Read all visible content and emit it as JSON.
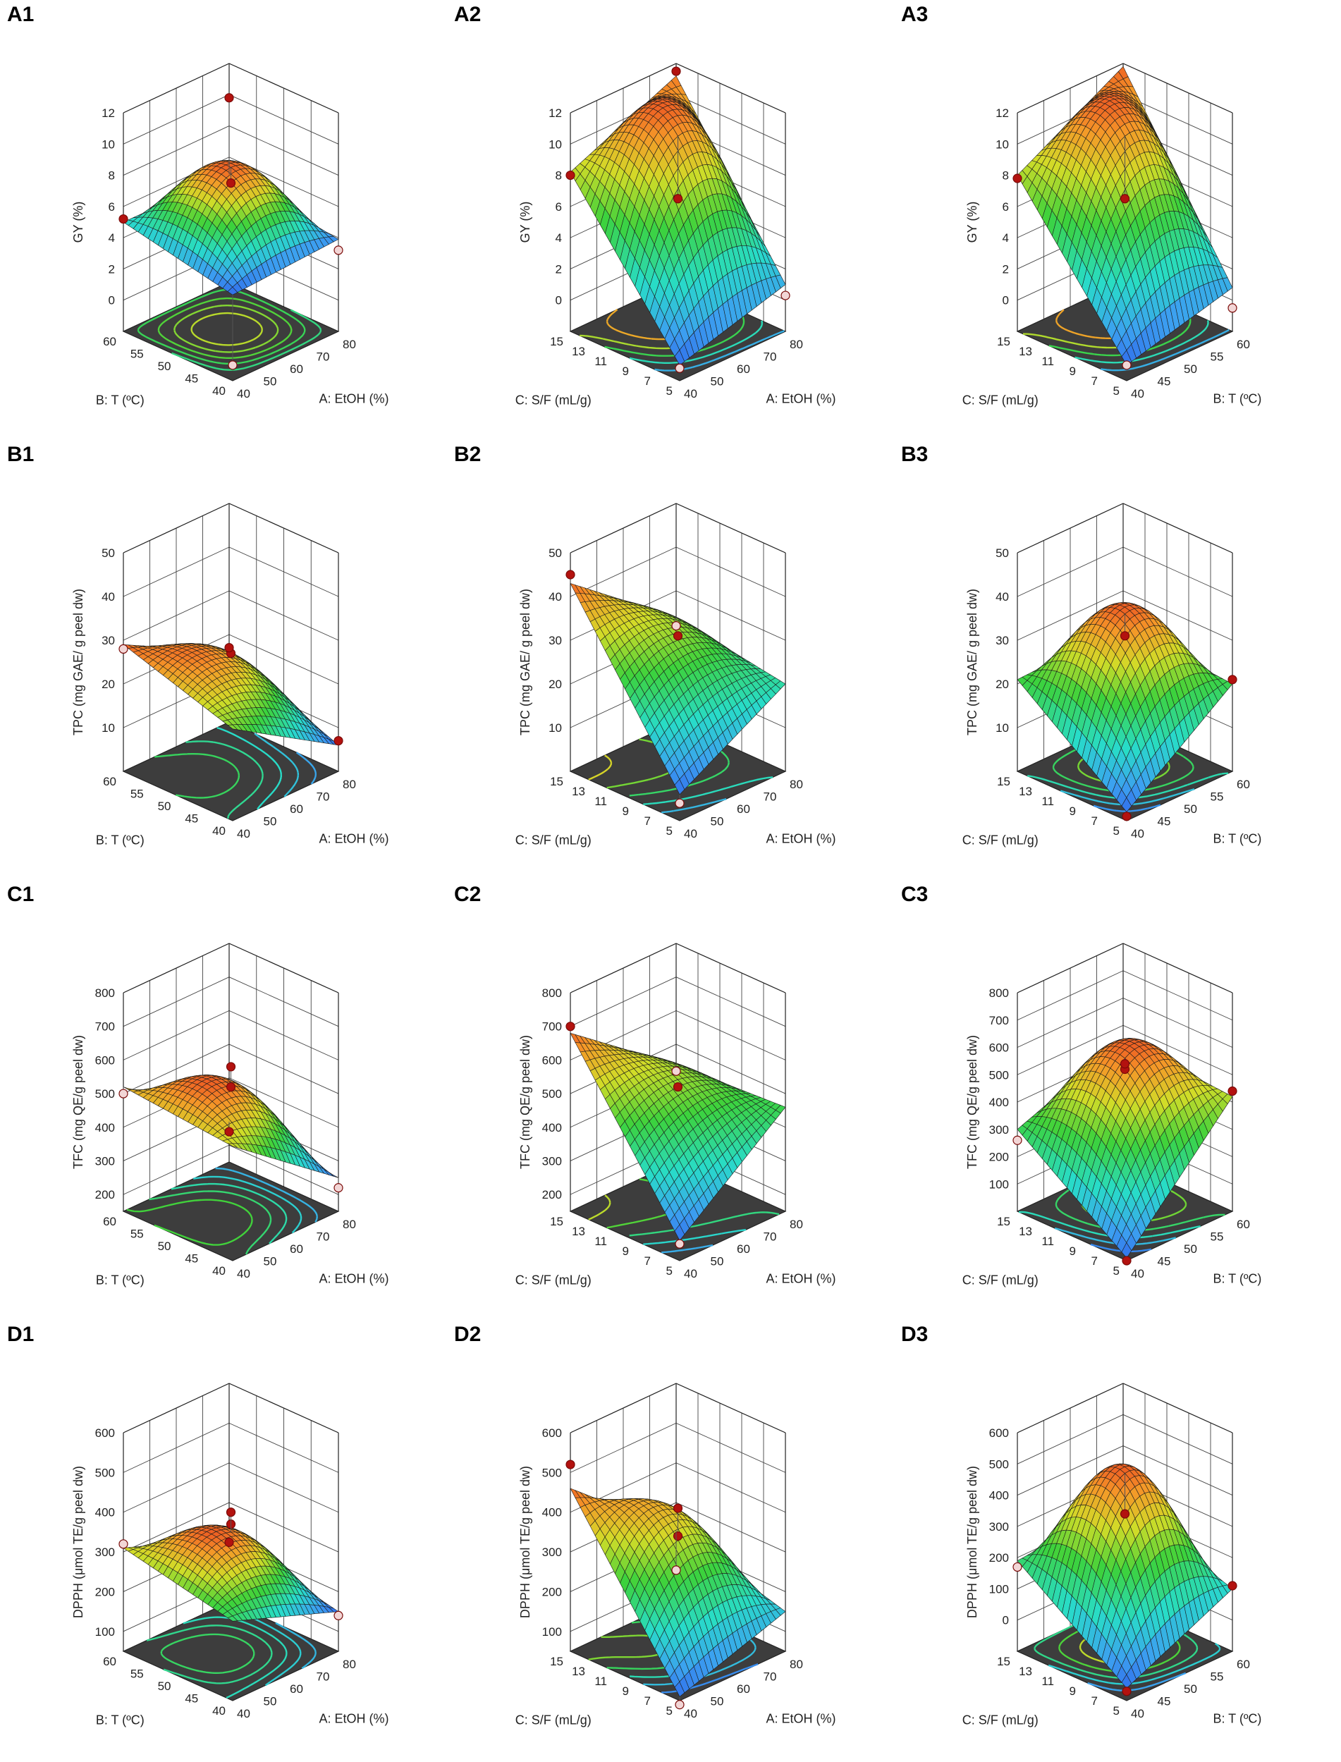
{
  "chart_data": [
    {
      "id": "A1",
      "type": "surface3d",
      "response": "gy",
      "x": "etoh",
      "y": "temp",
      "zlabel": "GY (%)",
      "zticks": [
        0,
        2,
        4,
        6,
        8,
        10,
        12
      ],
      "zlim": [
        -2,
        12
      ],
      "xlabel": "A: EtOH (%)",
      "xticks": [
        40,
        50,
        60,
        70,
        80
      ],
      "xlim": [
        40,
        80
      ],
      "ylabel": "B: T (ºC)",
      "yticks": [
        40,
        45,
        50,
        55,
        60
      ],
      "ylim": [
        40,
        60
      ],
      "surface_corners": {
        "xmin_ymin": 3.5,
        "xmax_ymin": 3.9,
        "xmin_ymax": 5.0,
        "xmax_ymax": 4.9
      },
      "surface_peak": 8.5,
      "design_points": [
        {
          "x": 40,
          "y": 60,
          "z": 5.2,
          "above": true
        },
        {
          "x": 80,
          "y": 60,
          "z": 9.8,
          "above": true
        },
        {
          "x": 60,
          "y": 50,
          "z": 7.5,
          "above": true
        },
        {
          "x": 80,
          "y": 40,
          "z": 3.2,
          "above": false
        },
        {
          "x": 40,
          "y": 40,
          "z": -1.0,
          "above": false
        }
      ]
    },
    {
      "id": "A2",
      "type": "surface3d",
      "response": "gy",
      "x": "etoh",
      "y": "sf",
      "zlabel": "GY (%)",
      "zticks": [
        0,
        2,
        4,
        6,
        8,
        10,
        12
      ],
      "zlim": [
        -2,
        12
      ],
      "xlabel": "A: EtOH (%)",
      "xticks": [
        40,
        50,
        60,
        70,
        80
      ],
      "xlim": [
        40,
        80
      ],
      "ylabel": "C: S/F (mL/g)",
      "yticks": [
        5,
        7,
        9,
        11,
        13,
        15
      ],
      "ylim": [
        5,
        15
      ],
      "surface_corners": {
        "xmin_ymin": -1.0,
        "xmax_ymin": 1.0,
        "xmin_ymax": 8.2,
        "xmax_ymax": 11.2
      },
      "surface_peak": 10.5,
      "design_points": [
        {
          "x": 40,
          "y": 15,
          "z": 8.0,
          "above": true
        },
        {
          "x": 80,
          "y": 15,
          "z": 11.5,
          "above": true
        },
        {
          "x": 60,
          "y": 10,
          "z": 6.5,
          "above": true
        },
        {
          "x": 80,
          "y": 5,
          "z": 0.3,
          "above": false
        },
        {
          "x": 40,
          "y": 5,
          "z": -1.2,
          "above": false
        }
      ]
    },
    {
      "id": "A3",
      "type": "surface3d",
      "response": "gy",
      "x": "temp",
      "y": "sf",
      "zlabel": "GY (%)",
      "zticks": [
        0,
        2,
        4,
        6,
        8,
        10,
        12
      ],
      "zlim": [
        -2,
        12
      ],
      "xlabel": "B: T (ºC)",
      "xticks": [
        40,
        45,
        50,
        55,
        60
      ],
      "xlim": [
        40,
        60
      ],
      "ylabel": "C: S/F (mL/g)",
      "yticks": [
        5,
        7,
        9,
        11,
        13,
        15
      ],
      "ylim": [
        5,
        15
      ],
      "surface_corners": {
        "xmin_ymin": -1.0,
        "xmax_ymin": 0.8,
        "xmin_ymax": 8.0,
        "xmax_ymax": 11.8
      },
      "surface_peak": 10.5,
      "design_points": [
        {
          "x": 40,
          "y": 15,
          "z": 7.8,
          "above": true
        },
        {
          "x": 50,
          "y": 10,
          "z": 6.5,
          "above": true
        },
        {
          "x": 60,
          "y": 5,
          "z": -0.5,
          "above": false
        },
        {
          "x": 40,
          "y": 5,
          "z": -1.0,
          "above": false
        }
      ]
    },
    {
      "id": "B1",
      "type": "surface3d",
      "response": "tpc",
      "x": "etoh",
      "y": "temp",
      "zlabel": "TPC (mg GAE/ g peel dw)",
      "zticks": [
        10,
        20,
        30,
        40,
        50
      ],
      "zlim": [
        0,
        50
      ],
      "xlabel": "A: EtOH (%)",
      "xticks": [
        40,
        50,
        60,
        70,
        80
      ],
      "xlim": [
        40,
        80
      ],
      "ylabel": "B: T (ºC)",
      "yticks": [
        40,
        45,
        50,
        55,
        60
      ],
      "ylim": [
        40,
        60
      ],
      "surface_corners": {
        "xmin_ymin": 21,
        "xmax_ymin": 6,
        "xmin_ymax": 29,
        "xmax_ymax": 16
      },
      "surface_peak": 26,
      "design_points": [
        {
          "x": 40,
          "y": 60,
          "z": 28,
          "above": false
        },
        {
          "x": 60,
          "y": 50,
          "z": 27,
          "above": true
        },
        {
          "x": 80,
          "y": 60,
          "z": 17,
          "above": true
        },
        {
          "x": 80,
          "y": 40,
          "z": 7,
          "above": true
        }
      ]
    },
    {
      "id": "B2",
      "type": "surface3d",
      "response": "tpc",
      "x": "etoh",
      "y": "sf",
      "zlabel": "TPC (mg GAE/ g peel dw)",
      "zticks": [
        10,
        20,
        30,
        40,
        50
      ],
      "zlim": [
        0,
        50
      ],
      "xlabel": "A: EtOH (%)",
      "xticks": [
        40,
        50,
        60,
        70,
        80
      ],
      "xlim": [
        40,
        80
      ],
      "ylabel": "C: S/F (mL/g)",
      "yticks": [
        5,
        7,
        9,
        11,
        13,
        15
      ],
      "ylim": [
        5,
        15
      ],
      "surface_corners": {
        "xmin_ymin": 6,
        "xmax_ymin": 20,
        "xmin_ymax": 43,
        "xmax_ymax": 24
      },
      "surface_peak": 30,
      "design_points": [
        {
          "x": 40,
          "y": 15,
          "z": 45,
          "above": true
        },
        {
          "x": 60,
          "y": 10,
          "z": 31,
          "above": true
        },
        {
          "x": 80,
          "y": 15,
          "z": 22,
          "above": false
        },
        {
          "x": 40,
          "y": 5,
          "z": 4,
          "above": false
        }
      ]
    },
    {
      "id": "B3",
      "type": "surface3d",
      "response": "tpc",
      "x": "temp",
      "y": "sf",
      "zlabel": "TPC (mg GAE/ g peel dw)",
      "zticks": [
        10,
        20,
        30,
        40,
        50
      ],
      "zlim": [
        0,
        50
      ],
      "xlabel": "B: T (ºC)",
      "xticks": [
        40,
        45,
        50,
        55,
        60
      ],
      "xlim": [
        40,
        60
      ],
      "ylabel": "C: S/F (mL/g)",
      "yticks": [
        5,
        7,
        9,
        11,
        13,
        15
      ],
      "ylim": [
        5,
        15
      ],
      "surface_corners": {
        "xmin_ymin": 2,
        "xmax_ymin": 20,
        "xmin_ymax": 21,
        "xmax_ymax": 22
      },
      "surface_peak": 36,
      "design_points": [
        {
          "x": 50,
          "y": 10,
          "z": 31,
          "above": true
        },
        {
          "x": 60,
          "y": 5,
          "z": 21,
          "above": true
        },
        {
          "x": 40,
          "y": 5,
          "z": 1,
          "above": true
        }
      ]
    },
    {
      "id": "C1",
      "type": "surface3d",
      "response": "tfc",
      "x": "etoh",
      "y": "temp",
      "zlabel": "TFC (mg QE/g peel dw)",
      "zticks": [
        200,
        300,
        400,
        500,
        600,
        700,
        800
      ],
      "zlim": [
        150,
        800
      ],
      "xlabel": "A: EtOH (%)",
      "xticks": [
        40,
        50,
        60,
        70,
        80
      ],
      "xlim": [
        40,
        80
      ],
      "ylabel": "B: T (ºC)",
      "yticks": [
        40,
        45,
        50,
        55,
        60
      ],
      "ylim": [
        40,
        60
      ],
      "surface_corners": {
        "xmin_ymin": 490,
        "xmax_ymin": 250,
        "xmin_ymax": 520,
        "xmax_ymax": 270
      },
      "surface_peak": 540,
      "design_points": [
        {
          "x": 40,
          "y": 60,
          "z": 500,
          "above": false
        },
        {
          "x": 60,
          "y": 50,
          "z": 520,
          "above": true
        },
        {
          "x": 60,
          "y": 50,
          "z": 580,
          "above": true
        },
        {
          "x": 80,
          "y": 60,
          "z": 240,
          "above": true
        },
        {
          "x": 80,
          "y": 40,
          "z": 220,
          "above": false
        }
      ]
    },
    {
      "id": "C2",
      "type": "surface3d",
      "response": "tfc",
      "x": "etoh",
      "y": "sf",
      "zlabel": "TFC (mg QE/g peel dw)",
      "zticks": [
        200,
        300,
        400,
        500,
        600,
        700,
        800
      ],
      "zlim": [
        150,
        800
      ],
      "xlabel": "A: EtOH (%)",
      "xticks": [
        40,
        50,
        60,
        70,
        80
      ],
      "xlim": [
        40,
        80
      ],
      "ylabel": "C: S/F (mL/g)",
      "yticks": [
        5,
        7,
        9,
        11,
        13,
        15
      ],
      "ylim": [
        5,
        15
      ],
      "surface_corners": {
        "xmin_ymin": 210,
        "xmax_ymin": 460,
        "xmin_ymax": 680,
        "xmax_ymax": 440
      },
      "surface_peak": 520,
      "design_points": [
        {
          "x": 40,
          "y": 15,
          "z": 700,
          "above": true
        },
        {
          "x": 60,
          "y": 10,
          "z": 520,
          "above": true
        },
        {
          "x": 80,
          "y": 15,
          "z": 420,
          "above": false
        },
        {
          "x": 40,
          "y": 5,
          "z": 200,
          "above": false
        }
      ]
    },
    {
      "id": "C3",
      "type": "surface3d",
      "response": "tfc",
      "x": "temp",
      "y": "sf",
      "zlabel": "TFC (mg QE/g peel dw)",
      "zticks": [
        100,
        200,
        300,
        400,
        500,
        600,
        700,
        800
      ],
      "zlim": [
        0,
        800
      ],
      "xlabel": "B: T (ºC)",
      "xticks": [
        40,
        45,
        50,
        55,
        60
      ],
      "xlim": [
        40,
        60
      ],
      "ylabel": "C: S/F (mL/g)",
      "yticks": [
        5,
        7,
        9,
        11,
        13,
        15
      ],
      "ylim": [
        5,
        15
      ],
      "surface_corners": {
        "xmin_ymin": 10,
        "xmax_ymin": 420,
        "xmin_ymax": 300,
        "xmax_ymax": 450
      },
      "surface_peak": 560,
      "design_points": [
        {
          "x": 50,
          "y": 10,
          "z": 520,
          "above": true
        },
        {
          "x": 50,
          "y": 10,
          "z": 540,
          "above": true
        },
        {
          "x": 60,
          "y": 5,
          "z": 440,
          "above": true
        },
        {
          "x": 40,
          "y": 15,
          "z": 260,
          "above": false
        },
        {
          "x": 40,
          "y": 5,
          "z": 0,
          "above": true
        }
      ]
    },
    {
      "id": "D1",
      "type": "surface3d",
      "response": "dpph",
      "x": "etoh",
      "y": "temp",
      "zlabel": "DPPH (μmol TE/g peel dw)",
      "zticks": [
        100,
        200,
        300,
        400,
        500,
        600
      ],
      "zlim": [
        50,
        600
      ],
      "xlabel": "A: EtOH (%)",
      "xticks": [
        40,
        50,
        60,
        70,
        80
      ],
      "xlim": [
        40,
        80
      ],
      "ylabel": "B: T (ºC)",
      "yticks": [
        40,
        45,
        50,
        55,
        60
      ],
      "ylim": [
        40,
        60
      ],
      "surface_corners": {
        "xmin_ymin": 250,
        "xmax_ymin": 150,
        "xmin_ymax": 310,
        "xmax_ymax": 210
      },
      "surface_peak": 350,
      "design_points": [
        {
          "x": 40,
          "y": 60,
          "z": 320,
          "above": false
        },
        {
          "x": 60,
          "y": 50,
          "z": 370,
          "above": true
        },
        {
          "x": 60,
          "y": 50,
          "z": 400,
          "above": true
        },
        {
          "x": 80,
          "y": 60,
          "z": 200,
          "above": true
        },
        {
          "x": 80,
          "y": 40,
          "z": 140,
          "above": false
        }
      ]
    },
    {
      "id": "D2",
      "type": "surface3d",
      "response": "dpph",
      "x": "etoh",
      "y": "sf",
      "zlabel": "DPPH (μmol TE/g peel dw)",
      "zticks": [
        100,
        200,
        300,
        400,
        500,
        600
      ],
      "zlim": [
        50,
        600
      ],
      "xlabel": "A: EtOH (%)",
      "xticks": [
        40,
        50,
        60,
        70,
        80
      ],
      "xlim": [
        40,
        80
      ],
      "ylabel": "C: S/F (mL/g)",
      "yticks": [
        5,
        7,
        9,
        11,
        13,
        15
      ],
      "ylim": [
        5,
        15
      ],
      "surface_corners": {
        "xmin_ymin": 60,
        "xmax_ymin": 150,
        "xmin_ymax": 460,
        "xmax_ymax": 230
      },
      "surface_peak": 380,
      "design_points": [
        {
          "x": 40,
          "y": 15,
          "z": 520,
          "above": true
        },
        {
          "x": 60,
          "y": 10,
          "z": 410,
          "above": true
        },
        {
          "x": 60,
          "y": 10,
          "z": 340,
          "above": true
        },
        {
          "x": 80,
          "y": 15,
          "z": 130,
          "above": false
        },
        {
          "x": 40,
          "y": 5,
          "z": 40,
          "above": false
        }
      ]
    },
    {
      "id": "D3",
      "type": "surface3d",
      "response": "dpph",
      "x": "temp",
      "y": "sf",
      "zlabel": "DPPH (μmol TE/g peel dw)",
      "zticks": [
        0,
        100,
        200,
        300,
        400,
        500,
        600
      ],
      "zlim": [
        -100,
        600
      ],
      "xlabel": "B: T (ºC)",
      "xticks": [
        40,
        45,
        50,
        55,
        60
      ],
      "xlim": [
        40,
        60
      ],
      "ylabel": "C: S/F (mL/g)",
      "yticks": [
        5,
        7,
        9,
        11,
        13,
        15
      ],
      "ylim": [
        5,
        15
      ],
      "surface_corners": {
        "xmin_ymin": -60,
        "xmax_ymin": 100,
        "xmin_ymax": 190,
        "xmax_ymax": 220
      },
      "surface_peak": 470,
      "design_points": [
        {
          "x": 50,
          "y": 10,
          "z": 340,
          "above": true
        },
        {
          "x": 60,
          "y": 5,
          "z": 110,
          "above": true
        },
        {
          "x": 40,
          "y": 15,
          "z": 170,
          "above": false
        },
        {
          "x": 40,
          "y": 5,
          "z": -70,
          "above": true
        }
      ]
    }
  ]
}
